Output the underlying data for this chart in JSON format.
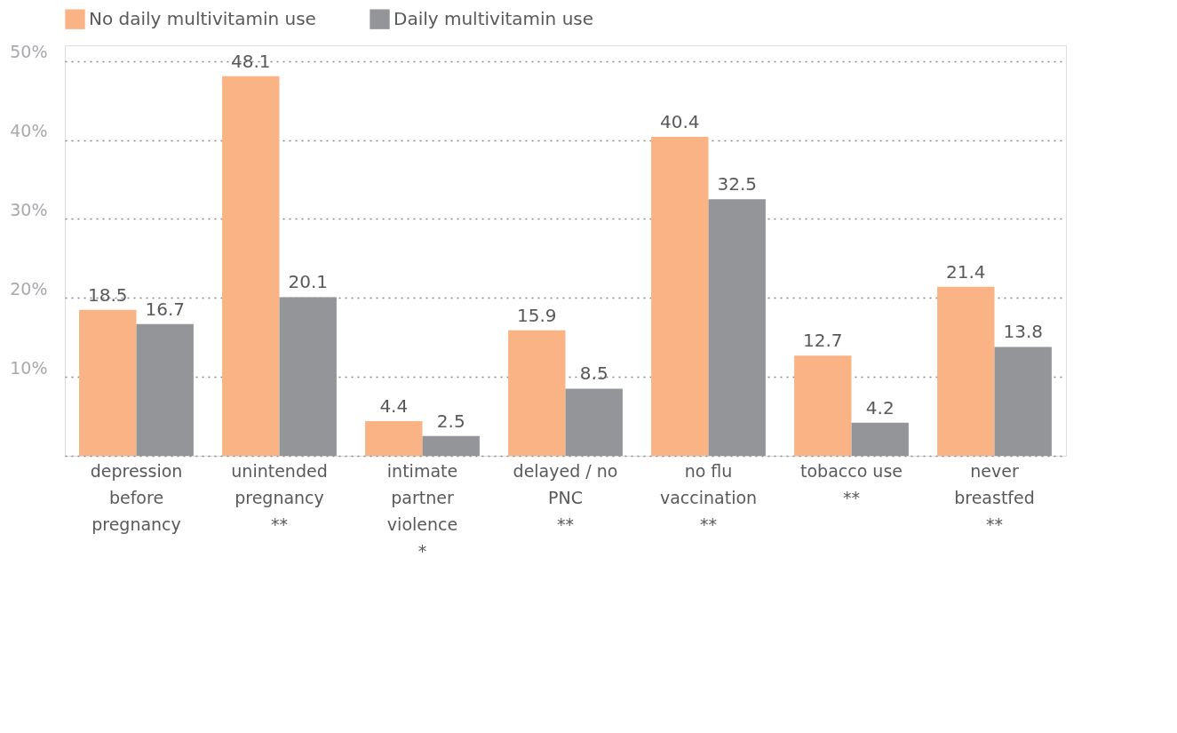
{
  "chart_data": {
    "type": "bar",
    "categories": [
      "depression\nbefore\npregnancy",
      "unintended\npregnancy\n**",
      "intimate\npartner\nviolence\n*",
      "delayed / no\nPNC\n**",
      "no flu\nvaccination\n**",
      "tobacco use\n**",
      "never\nbreastfed\n**"
    ],
    "series": [
      {
        "name": "No daily multivitamin use",
        "color": "#f9b384",
        "values": [
          18.5,
          48.1,
          4.4,
          15.9,
          40.4,
          12.7,
          21.4
        ]
      },
      {
        "name": "Daily multivitamin use",
        "color": "#939598",
        "values": [
          16.7,
          20.1,
          2.5,
          8.5,
          32.5,
          4.2,
          13.8
        ]
      }
    ],
    "ylim": [
      0,
      52
    ],
    "yticks": [
      {
        "value": 0,
        "label": null
      },
      {
        "value": 10,
        "label": "10%"
      },
      {
        "value": 20,
        "label": "20%"
      },
      {
        "value": 30,
        "label": "30%"
      },
      {
        "value": 40,
        "label": "40%"
      },
      {
        "value": 50,
        "label": "50%"
      }
    ],
    "grid": "y",
    "legend": "top",
    "data_labels": true
  }
}
